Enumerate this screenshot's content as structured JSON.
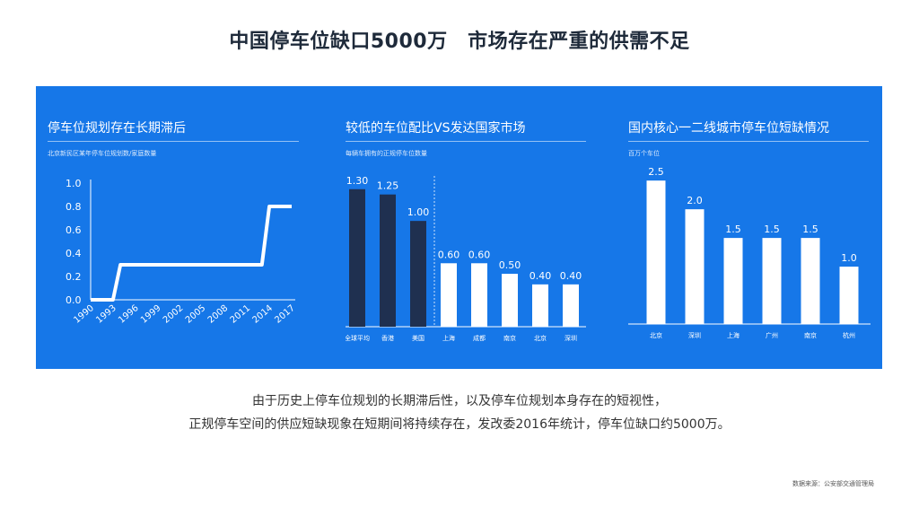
{
  "page": {
    "title": "中国停车位缺口5000万　市场存在严重的供需不足",
    "body_lines": [
      "由于历史上停车位规划的长期滞后性，以及停车位规划本身存在的短视性，",
      "正规停车空间的供应短缺现象在短期间将持续存在，发改委2016年统计，停车位缺口约5000万。"
    ],
    "source": "数据来源：公安部交通管理局"
  },
  "colors": {
    "panel": "#1677e8",
    "white": "#ffffff",
    "dark_bar": "#1f3050"
  },
  "chart_data": [
    {
      "type": "line",
      "title": "停车位规划存在长期滞后",
      "subtitle": "北京新民区某年停车位规划数/家庭数量",
      "x": [
        1990,
        1993,
        1994,
        2013,
        2014,
        2017
      ],
      "y": [
        0.0,
        0.0,
        0.3,
        0.3,
        0.8,
        0.8
      ],
      "x_ticks": [
        "1990",
        "1993",
        "1996",
        "1999",
        "2002",
        "2005",
        "2008",
        "2011",
        "2014",
        "2017"
      ],
      "y_ticks": [
        "0.0",
        "0.2",
        "0.4",
        "0.6",
        "0.8",
        "1.0"
      ],
      "xlim": [
        1990,
        2017
      ],
      "ylim": [
        0,
        1.0
      ]
    },
    {
      "type": "bar",
      "title": "较低的车位配比VS发达国家市场",
      "subtitle": "每辆车拥有的正规停车位数量",
      "categories": [
        "全球平均",
        "香港",
        "美国",
        "上海",
        "成都",
        "南京",
        "北京",
        "深圳"
      ],
      "values": [
        1.3,
        1.25,
        1.0,
        0.6,
        0.6,
        0.5,
        0.4,
        0.4
      ],
      "labels": [
        "1.30",
        "1.25",
        "1.00",
        "0.60",
        "0.60",
        "0.50",
        "0.40",
        "0.40"
      ],
      "highlight_count": 3,
      "ylim": [
        0,
        1.4
      ]
    },
    {
      "type": "bar",
      "title": "国内核心一二线城市停车位短缺情况",
      "subtitle": "百万个车位",
      "categories": [
        "北京",
        "深圳",
        "上海",
        "广州",
        "南京",
        "杭州"
      ],
      "values": [
        2.5,
        2.0,
        1.5,
        1.5,
        1.5,
        1.0
      ],
      "labels": [
        "2.5",
        "2.0",
        "1.5",
        "1.5",
        "1.5",
        "1.0"
      ],
      "ylim": [
        0,
        2.8
      ]
    }
  ]
}
